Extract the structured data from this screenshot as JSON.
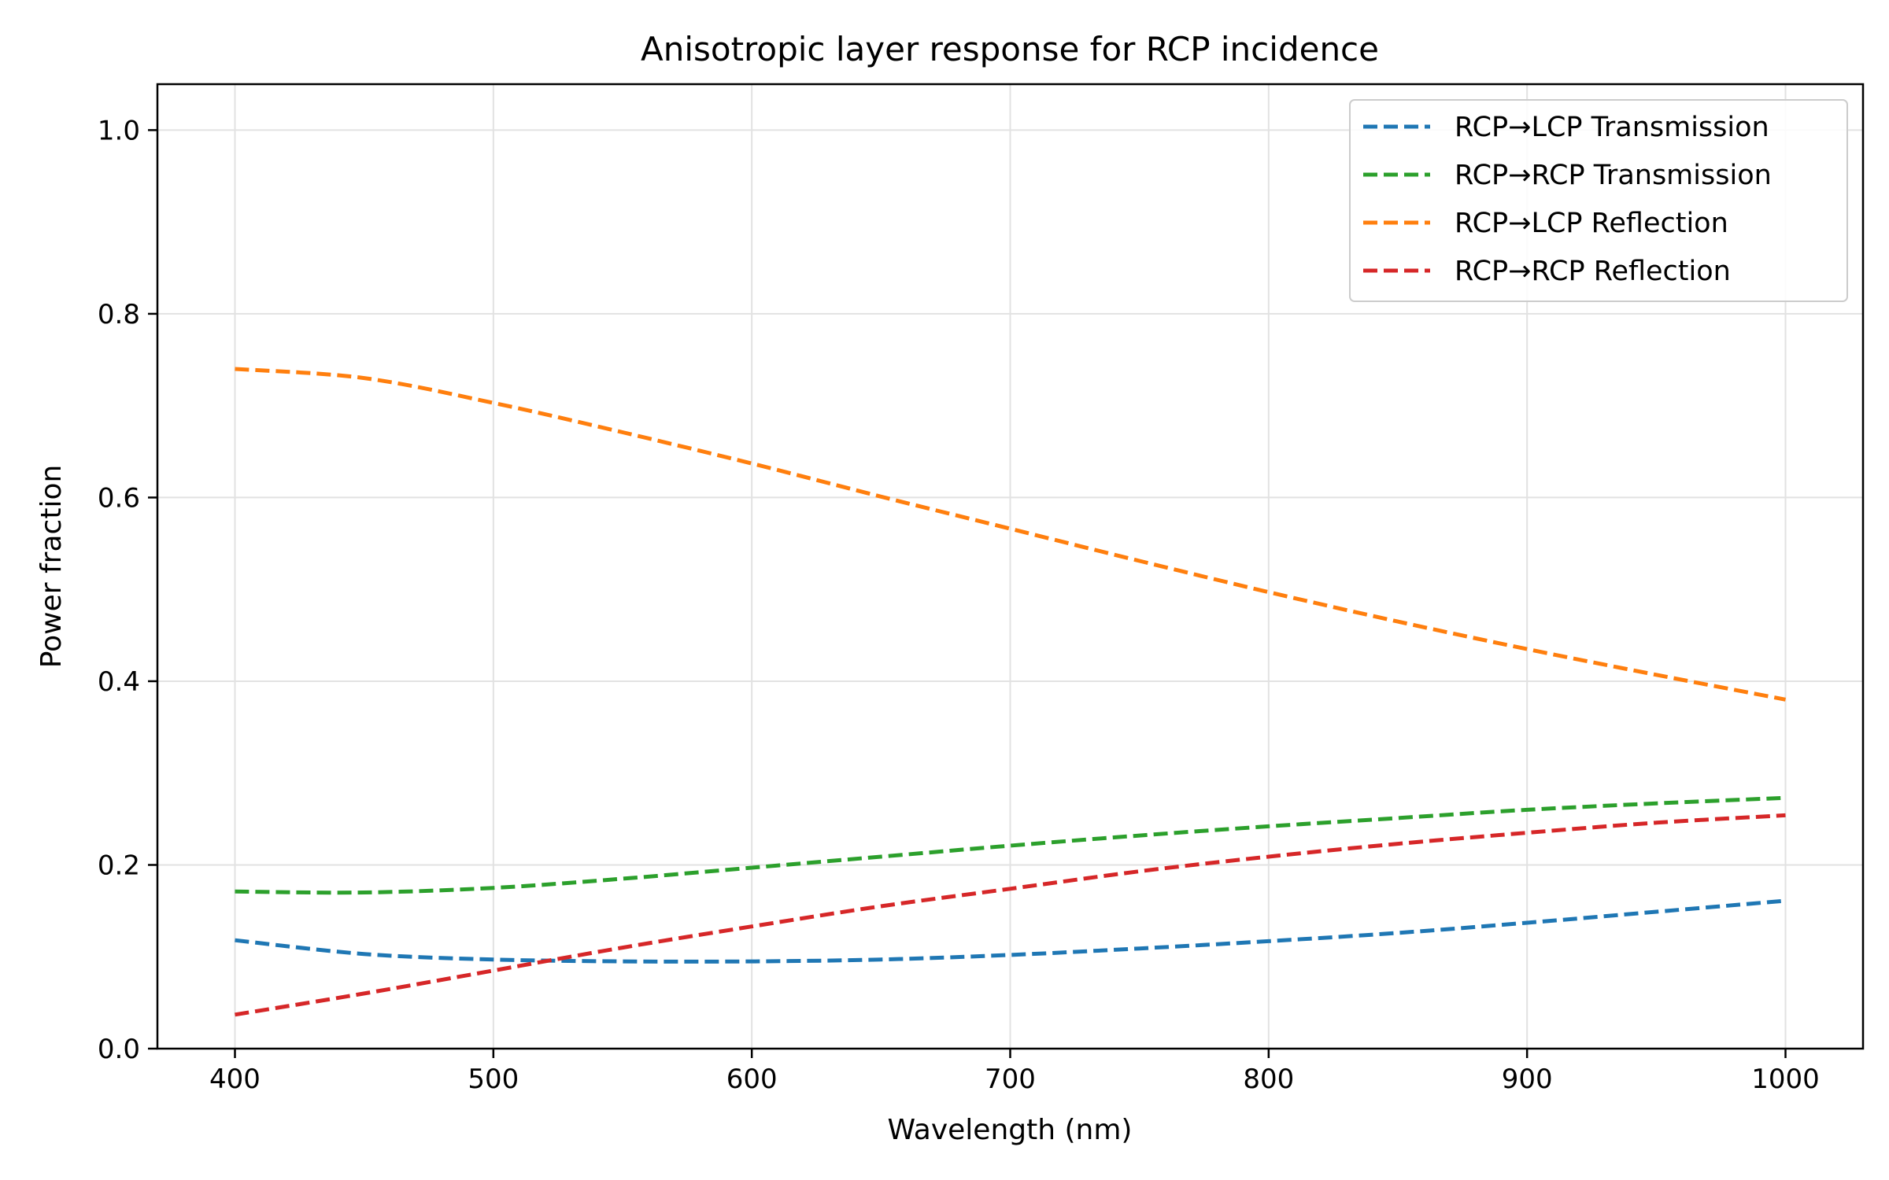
{
  "chart_data": {
    "type": "line",
    "title": "Anisotropic layer response for RCP incidence",
    "xlabel": "Wavelength (nm)",
    "ylabel": "Power fraction",
    "xlim": [
      370,
      1030
    ],
    "ylim": [
      0.0,
      1.05
    ],
    "xticks": [
      400,
      500,
      600,
      700,
      800,
      900,
      1000
    ],
    "yticks": [
      0.0,
      0.2,
      0.4,
      0.6,
      0.8,
      1.0
    ],
    "xtick_labels": [
      "400",
      "500",
      "600",
      "700",
      "800",
      "900",
      "1000"
    ],
    "ytick_labels": [
      "0.0",
      "0.2",
      "0.4",
      "0.6",
      "0.8",
      "1.0"
    ],
    "grid": true,
    "legend_position": "top-right",
    "x": [
      400,
      450,
      500,
      550,
      600,
      650,
      700,
      750,
      800,
      850,
      900,
      950,
      1000
    ],
    "series": [
      {
        "name": "RCP→LCP Transmission",
        "color": "#1f77b4",
        "values": [
          0.118,
          0.103,
          0.097,
          0.095,
          0.095,
          0.097,
          0.102,
          0.109,
          0.117,
          0.126,
          0.137,
          0.149,
          0.161
        ]
      },
      {
        "name": "RCP→RCP Transmission",
        "color": "#2ca02c",
        "values": [
          0.171,
          0.17,
          0.175,
          0.185,
          0.197,
          0.209,
          0.221,
          0.232,
          0.242,
          0.251,
          0.26,
          0.267,
          0.273
        ]
      },
      {
        "name": "RCP→LCP Reflection",
        "color": "#ff7f0e",
        "values": [
          0.74,
          0.73,
          0.703,
          0.671,
          0.637,
          0.601,
          0.566,
          0.531,
          0.497,
          0.465,
          0.435,
          0.407,
          0.38
        ]
      },
      {
        "name": "RCP→RCP Reflection",
        "color": "#d62728",
        "values": [
          0.037,
          0.06,
          0.085,
          0.11,
          0.133,
          0.155,
          0.174,
          0.193,
          0.209,
          0.223,
          0.235,
          0.246,
          0.254
        ]
      }
    ]
  }
}
